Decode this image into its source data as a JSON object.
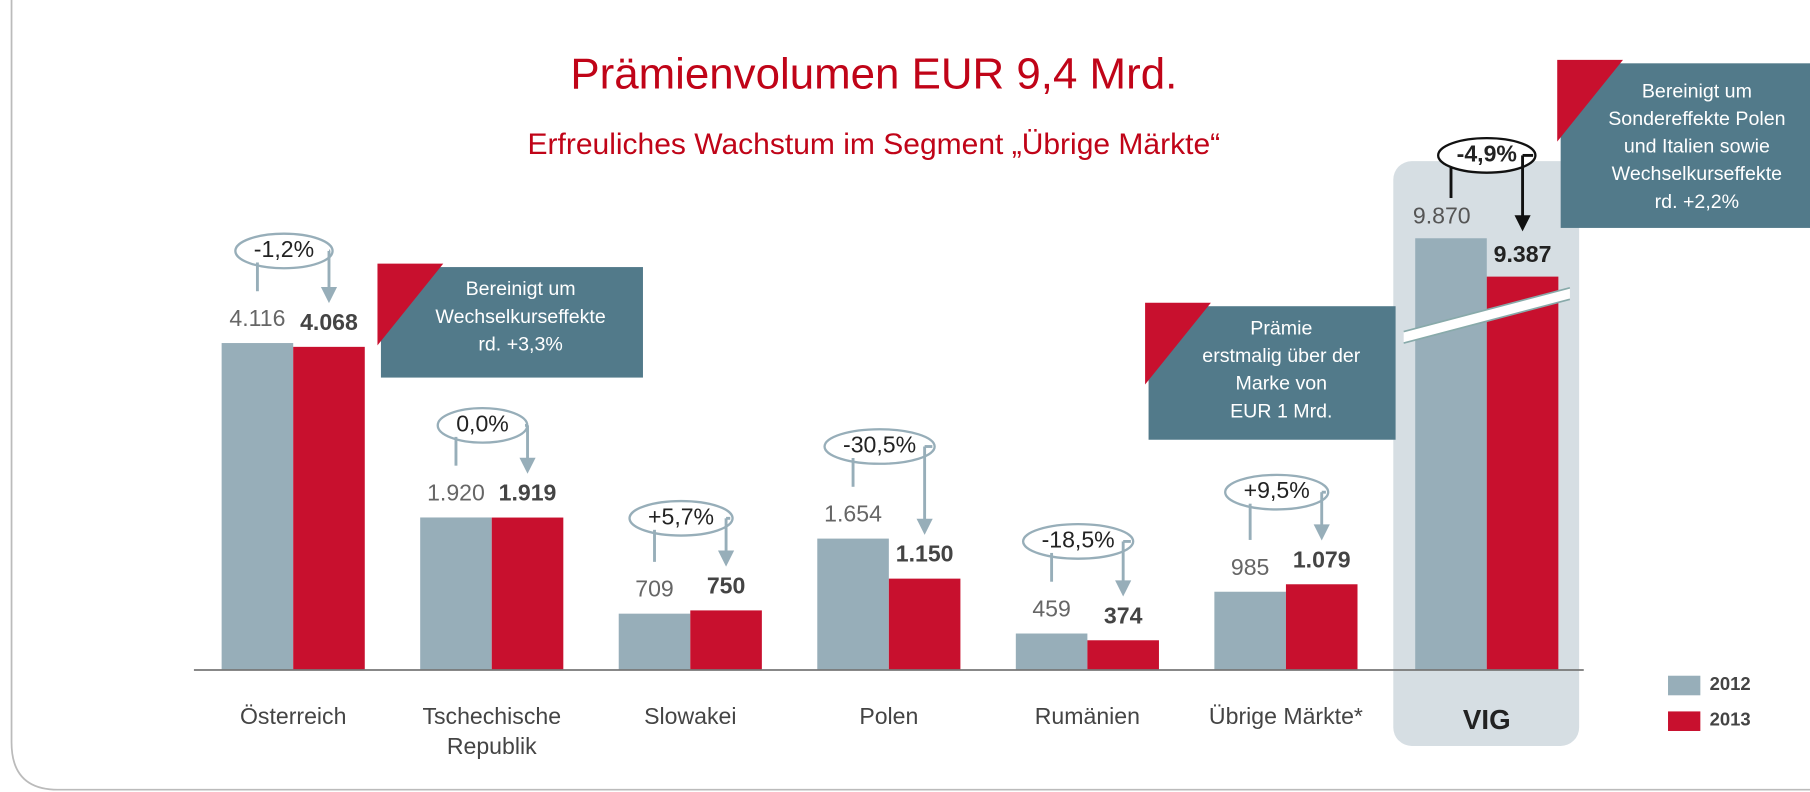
{
  "chart_data": {
    "type": "bar",
    "title": "Prämienvolumen EUR 9,4 Mrd.",
    "subtitle": "Erfreuliches Wachstum im Segment „Übrige Märkte“",
    "categories": [
      "Österreich",
      "Tschechische Republik",
      "Slowakei",
      "Polen",
      "Rumänien",
      "Übrige Märkte*"
    ],
    "series": [
      {
        "name": "2012",
        "color": "#97aeb9",
        "values": [
          4116,
          1920,
          709,
          1654,
          459,
          985
        ],
        "value_labels": [
          "4.116",
          "1.920",
          "709",
          "1.654",
          "459",
          "985"
        ]
      },
      {
        "name": "2013",
        "color": "#c8102e",
        "values": [
          4068,
          1919,
          750,
          1150,
          374,
          1079
        ],
        "value_labels": [
          "4.068",
          "1.919",
          "750",
          "1.150",
          "374",
          "1.079"
        ]
      }
    ],
    "changes": [
      "-1,2%",
      "0,0%",
      "+5,7%",
      "-30,5%",
      "-18,5%",
      "+9,5%"
    ],
    "total": {
      "category": "VIG",
      "values": [
        9870,
        9387
      ],
      "value_labels": [
        "9.870",
        "9.387"
      ],
      "change": "-4,9%",
      "axis_break": true
    },
    "annotations": [
      {
        "lines": [
          "Bereinigt um",
          "Wechselkurseffekte",
          "rd. +3,3%"
        ]
      },
      {
        "lines": [
          "Prämie",
          "erstmalig über der",
          "Marke von",
          "EUR 1 Mrd."
        ]
      },
      {
        "lines": [
          "Bereinigt um",
          "Sondereffekte Polen",
          "und Italien sowie",
          "Wechselkurseffekte",
          "rd. +2,2%"
        ]
      }
    ]
  }
}
